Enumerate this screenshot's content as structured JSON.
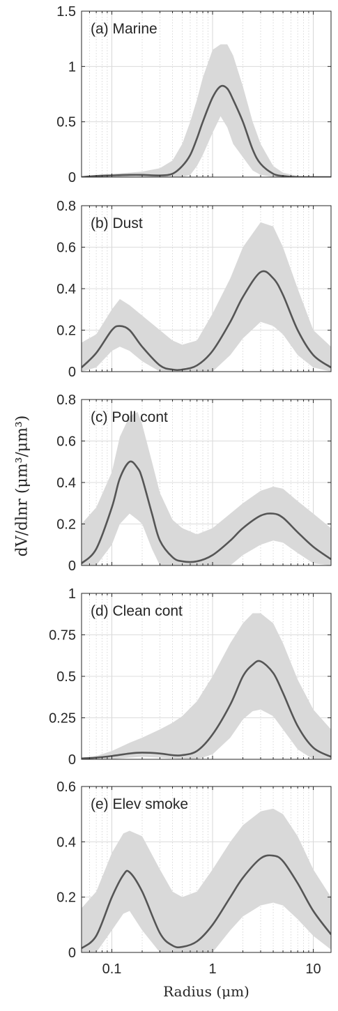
{
  "chart_data": [
    {
      "type": "area",
      "label": "(a) Marine",
      "xscale": "log",
      "xlim": [
        0.05,
        15
      ],
      "ylim": [
        0,
        1.5
      ],
      "yticks": [
        0,
        0.5,
        1,
        1.5
      ],
      "ytick_labels": [
        "0",
        "0.5",
        "1",
        "1.5"
      ],
      "x": [
        0.05,
        0.07,
        0.1,
        0.15,
        0.2,
        0.3,
        0.4,
        0.5,
        0.6,
        0.7,
        0.8,
        1.0,
        1.2,
        1.4,
        1.6,
        2.0,
        2.5,
        3.0,
        4.0,
        5.0,
        7.0,
        10.0,
        15.0
      ],
      "series": [
        {
          "role": "median",
          "values": [
            0.0,
            0.01,
            0.015,
            0.02,
            0.02,
            0.015,
            0.03,
            0.1,
            0.2,
            0.35,
            0.5,
            0.72,
            0.82,
            0.8,
            0.7,
            0.5,
            0.25,
            0.12,
            0.03,
            0.01,
            0.0,
            0.0,
            0.0
          ]
        },
        {
          "role": "band-upper",
          "values": [
            0.0,
            0.02,
            0.03,
            0.04,
            0.05,
            0.08,
            0.15,
            0.3,
            0.5,
            0.7,
            0.9,
            1.15,
            1.2,
            1.2,
            1.1,
            0.82,
            0.5,
            0.3,
            0.1,
            0.04,
            0.01,
            0.005,
            0.005
          ]
        },
        {
          "role": "band-lower",
          "values": [
            0.0,
            0.0,
            0.0,
            0.0,
            0.0,
            0.0,
            0.0,
            0.0,
            0.02,
            0.1,
            0.2,
            0.4,
            0.55,
            0.45,
            0.3,
            0.18,
            0.06,
            0.02,
            0.0,
            0.0,
            0.0,
            0.0,
            0.0
          ]
        }
      ]
    },
    {
      "type": "area",
      "label": "(b) Dust",
      "xscale": "log",
      "xlim": [
        0.05,
        15
      ],
      "ylim": [
        0,
        0.8
      ],
      "yticks": [
        0,
        0.2,
        0.4,
        0.6,
        0.8
      ],
      "ytick_labels": [
        "0",
        "0.2",
        "0.4",
        "0.6",
        "0.8"
      ],
      "x": [
        0.05,
        0.07,
        0.1,
        0.12,
        0.15,
        0.2,
        0.3,
        0.4,
        0.5,
        0.7,
        1.0,
        1.5,
        2.0,
        3.0,
        4.0,
        5.0,
        7.0,
        10.0,
        15.0
      ],
      "series": [
        {
          "role": "median",
          "values": [
            0.02,
            0.09,
            0.2,
            0.22,
            0.2,
            0.12,
            0.03,
            0.01,
            0.01,
            0.03,
            0.1,
            0.24,
            0.36,
            0.48,
            0.45,
            0.37,
            0.2,
            0.08,
            0.02
          ]
        },
        {
          "role": "band-upper",
          "values": [
            0.14,
            0.18,
            0.3,
            0.35,
            0.32,
            0.27,
            0.2,
            0.15,
            0.13,
            0.15,
            0.28,
            0.45,
            0.6,
            0.72,
            0.7,
            0.6,
            0.4,
            0.2,
            0.12
          ]
        },
        {
          "role": "band-lower",
          "values": [
            0.0,
            0.02,
            0.1,
            0.12,
            0.1,
            0.05,
            0.0,
            0.0,
            0.0,
            0.0,
            0.0,
            0.08,
            0.16,
            0.24,
            0.22,
            0.18,
            0.08,
            0.02,
            0.0
          ]
        }
      ]
    },
    {
      "type": "area",
      "label": "(c) Poll cont",
      "xscale": "log",
      "xlim": [
        0.05,
        15
      ],
      "ylim": [
        0,
        0.8
      ],
      "yticks": [
        0,
        0.2,
        0.4,
        0.6,
        0.8
      ],
      "ytick_labels": [
        "0",
        "0.2",
        "0.4",
        "0.6",
        "0.8"
      ],
      "x": [
        0.05,
        0.07,
        0.1,
        0.12,
        0.15,
        0.18,
        0.2,
        0.25,
        0.3,
        0.4,
        0.5,
        0.7,
        1.0,
        1.5,
        2.0,
        3.0,
        4.0,
        5.0,
        7.0,
        10.0,
        15.0
      ],
      "series": [
        {
          "role": "median",
          "values": [
            0.01,
            0.08,
            0.28,
            0.42,
            0.5,
            0.47,
            0.42,
            0.25,
            0.12,
            0.04,
            0.02,
            0.02,
            0.05,
            0.12,
            0.18,
            0.24,
            0.25,
            0.23,
            0.16,
            0.09,
            0.03
          ]
        },
        {
          "role": "band-upper",
          "values": [
            0.2,
            0.28,
            0.45,
            0.62,
            0.72,
            0.74,
            0.68,
            0.5,
            0.35,
            0.22,
            0.18,
            0.15,
            0.18,
            0.25,
            0.3,
            0.36,
            0.38,
            0.37,
            0.31,
            0.25,
            0.18
          ]
        },
        {
          "role": "band-lower",
          "values": [
            0.0,
            0.0,
            0.1,
            0.2,
            0.25,
            0.22,
            0.2,
            0.08,
            0.0,
            0.0,
            0.0,
            0.0,
            0.0,
            0.0,
            0.05,
            0.1,
            0.12,
            0.11,
            0.06,
            0.01,
            0.0
          ]
        }
      ]
    },
    {
      "type": "area",
      "label": "(d) Clean cont",
      "xscale": "log",
      "xlim": [
        0.05,
        15
      ],
      "ylim": [
        0,
        1
      ],
      "yticks": [
        0,
        0.25,
        0.5,
        0.75,
        1
      ],
      "ytick_labels": [
        "0",
        "0.25",
        "0.5",
        "0.75",
        "1"
      ],
      "x": [
        0.05,
        0.07,
        0.1,
        0.15,
        0.2,
        0.3,
        0.4,
        0.5,
        0.7,
        1.0,
        1.5,
        2.0,
        2.5,
        3.0,
        4.0,
        5.0,
        7.0,
        10.0,
        15.0
      ],
      "series": [
        {
          "role": "median",
          "values": [
            0.005,
            0.01,
            0.02,
            0.035,
            0.04,
            0.035,
            0.025,
            0.025,
            0.05,
            0.15,
            0.33,
            0.5,
            0.57,
            0.59,
            0.52,
            0.4,
            0.2,
            0.07,
            0.015
          ]
        },
        {
          "role": "band-upper",
          "values": [
            0.01,
            0.02,
            0.05,
            0.1,
            0.13,
            0.18,
            0.22,
            0.26,
            0.35,
            0.5,
            0.7,
            0.82,
            0.88,
            0.88,
            0.82,
            0.7,
            0.48,
            0.3,
            0.18
          ]
        },
        {
          "role": "band-lower",
          "values": [
            0.0,
            0.0,
            0.0,
            0.01,
            0.015,
            0.01,
            0.005,
            0.0,
            0.0,
            0.03,
            0.13,
            0.24,
            0.29,
            0.3,
            0.26,
            0.18,
            0.06,
            0.0,
            0.0
          ]
        }
      ]
    },
    {
      "type": "area",
      "label": "(e) Elev smoke",
      "xscale": "log",
      "xlim": [
        0.05,
        15
      ],
      "ylim": [
        0,
        0.6
      ],
      "yticks": [
        0,
        0.2,
        0.4,
        0.6
      ],
      "ytick_labels": [
        "0",
        "0.2",
        "0.4",
        "0.6"
      ],
      "x": [
        0.05,
        0.07,
        0.1,
        0.13,
        0.15,
        0.2,
        0.3,
        0.4,
        0.5,
        0.7,
        1.0,
        1.5,
        2.0,
        3.0,
        4.0,
        5.0,
        7.0,
        10.0,
        15.0
      ],
      "series": [
        {
          "role": "median",
          "values": [
            0.015,
            0.06,
            0.2,
            0.28,
            0.29,
            0.22,
            0.07,
            0.025,
            0.02,
            0.04,
            0.1,
            0.2,
            0.27,
            0.34,
            0.35,
            0.33,
            0.25,
            0.15,
            0.065
          ]
        },
        {
          "role": "band-upper",
          "values": [
            0.16,
            0.22,
            0.36,
            0.43,
            0.44,
            0.42,
            0.3,
            0.22,
            0.2,
            0.22,
            0.3,
            0.4,
            0.46,
            0.51,
            0.52,
            0.5,
            0.42,
            0.3,
            0.2
          ]
        },
        {
          "role": "band-lower",
          "values": [
            0.0,
            0.0,
            0.08,
            0.14,
            0.15,
            0.08,
            0.0,
            0.0,
            0.0,
            0.0,
            0.0,
            0.08,
            0.13,
            0.17,
            0.18,
            0.17,
            0.12,
            0.06,
            0.01
          ]
        }
      ]
    }
  ],
  "x_axis": {
    "label": "Radius (μm)",
    "ticks": [
      0.1,
      1,
      10
    ],
    "tick_labels": [
      "0.1",
      "1",
      "10"
    ]
  },
  "y_axis": {
    "label": "dV/dlnr (μm³/μm³)"
  },
  "colors": {
    "band": "#d9d9d9",
    "line": "#555555",
    "grid": "#dcdcdc",
    "axis": "#262626"
  }
}
